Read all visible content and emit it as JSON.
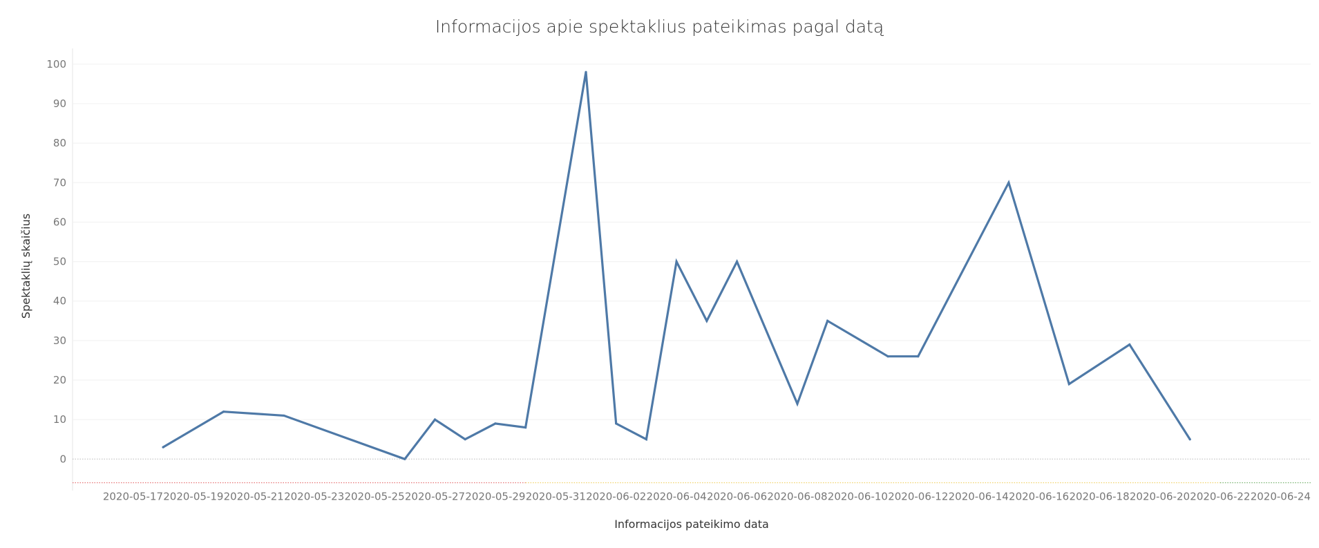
{
  "chart_data": {
    "type": "line",
    "title": "Informacijos apie spektaklius pateikimas pagal datą",
    "xlabel": "Informacijos pateikimo data",
    "ylabel": "Spektaklių skaičius",
    "ylim": [
      -8,
      104
    ],
    "yticks": [
      0,
      10,
      20,
      30,
      40,
      50,
      60,
      70,
      80,
      90,
      100
    ],
    "xticks": [
      "2020-05-17",
      "2020-05-19",
      "2020-05-21",
      "2020-05-23",
      "2020-05-25",
      "2020-05-27",
      "2020-05-29",
      "2020-05-31",
      "2020-06-02",
      "2020-06-04",
      "2020-06-06",
      "2020-06-08",
      "2020-06-10",
      "2020-06-12",
      "2020-06-14",
      "2020-06-16",
      "2020-06-18",
      "2020-06-20",
      "2020-06-22",
      "2020-06-24"
    ],
    "xlim": [
      "2020-05-15",
      "2020-06-25"
    ],
    "grid": true,
    "line_color": "#4e79a7",
    "points": [
      {
        "x": "2020-05-18",
        "y": 3
      },
      {
        "x": "2020-05-20",
        "y": 12
      },
      {
        "x": "2020-05-22",
        "y": 11
      },
      {
        "x": "2020-05-26",
        "y": 0
      },
      {
        "x": "2020-05-27",
        "y": 10
      },
      {
        "x": "2020-05-28",
        "y": 5
      },
      {
        "x": "2020-05-29",
        "y": 9
      },
      {
        "x": "2020-05-30",
        "y": 8
      },
      {
        "x": "2020-06-01",
        "y": 98
      },
      {
        "x": "2020-06-02",
        "y": 9
      },
      {
        "x": "2020-06-03",
        "y": 5
      },
      {
        "x": "2020-06-04",
        "y": 50
      },
      {
        "x": "2020-06-05",
        "y": 35
      },
      {
        "x": "2020-06-06",
        "y": 50
      },
      {
        "x": "2020-06-08",
        "y": 14
      },
      {
        "x": "2020-06-09",
        "y": 35
      },
      {
        "x": "2020-06-11",
        "y": 26
      },
      {
        "x": "2020-06-12",
        "y": 26
      },
      {
        "x": "2020-06-15",
        "y": 70
      },
      {
        "x": "2020-06-17",
        "y": 19
      },
      {
        "x": "2020-06-19",
        "y": 29
      },
      {
        "x": "2020-06-21",
        "y": 5
      }
    ],
    "timeline_band": [
      {
        "from": "2020-05-15",
        "to": "2020-05-30",
        "color": "#e15759"
      },
      {
        "from": "2020-05-30",
        "to": "2020-06-22",
        "color": "#edc948"
      },
      {
        "from": "2020-06-22",
        "to": "2020-06-25",
        "color": "#59a14f"
      }
    ]
  }
}
